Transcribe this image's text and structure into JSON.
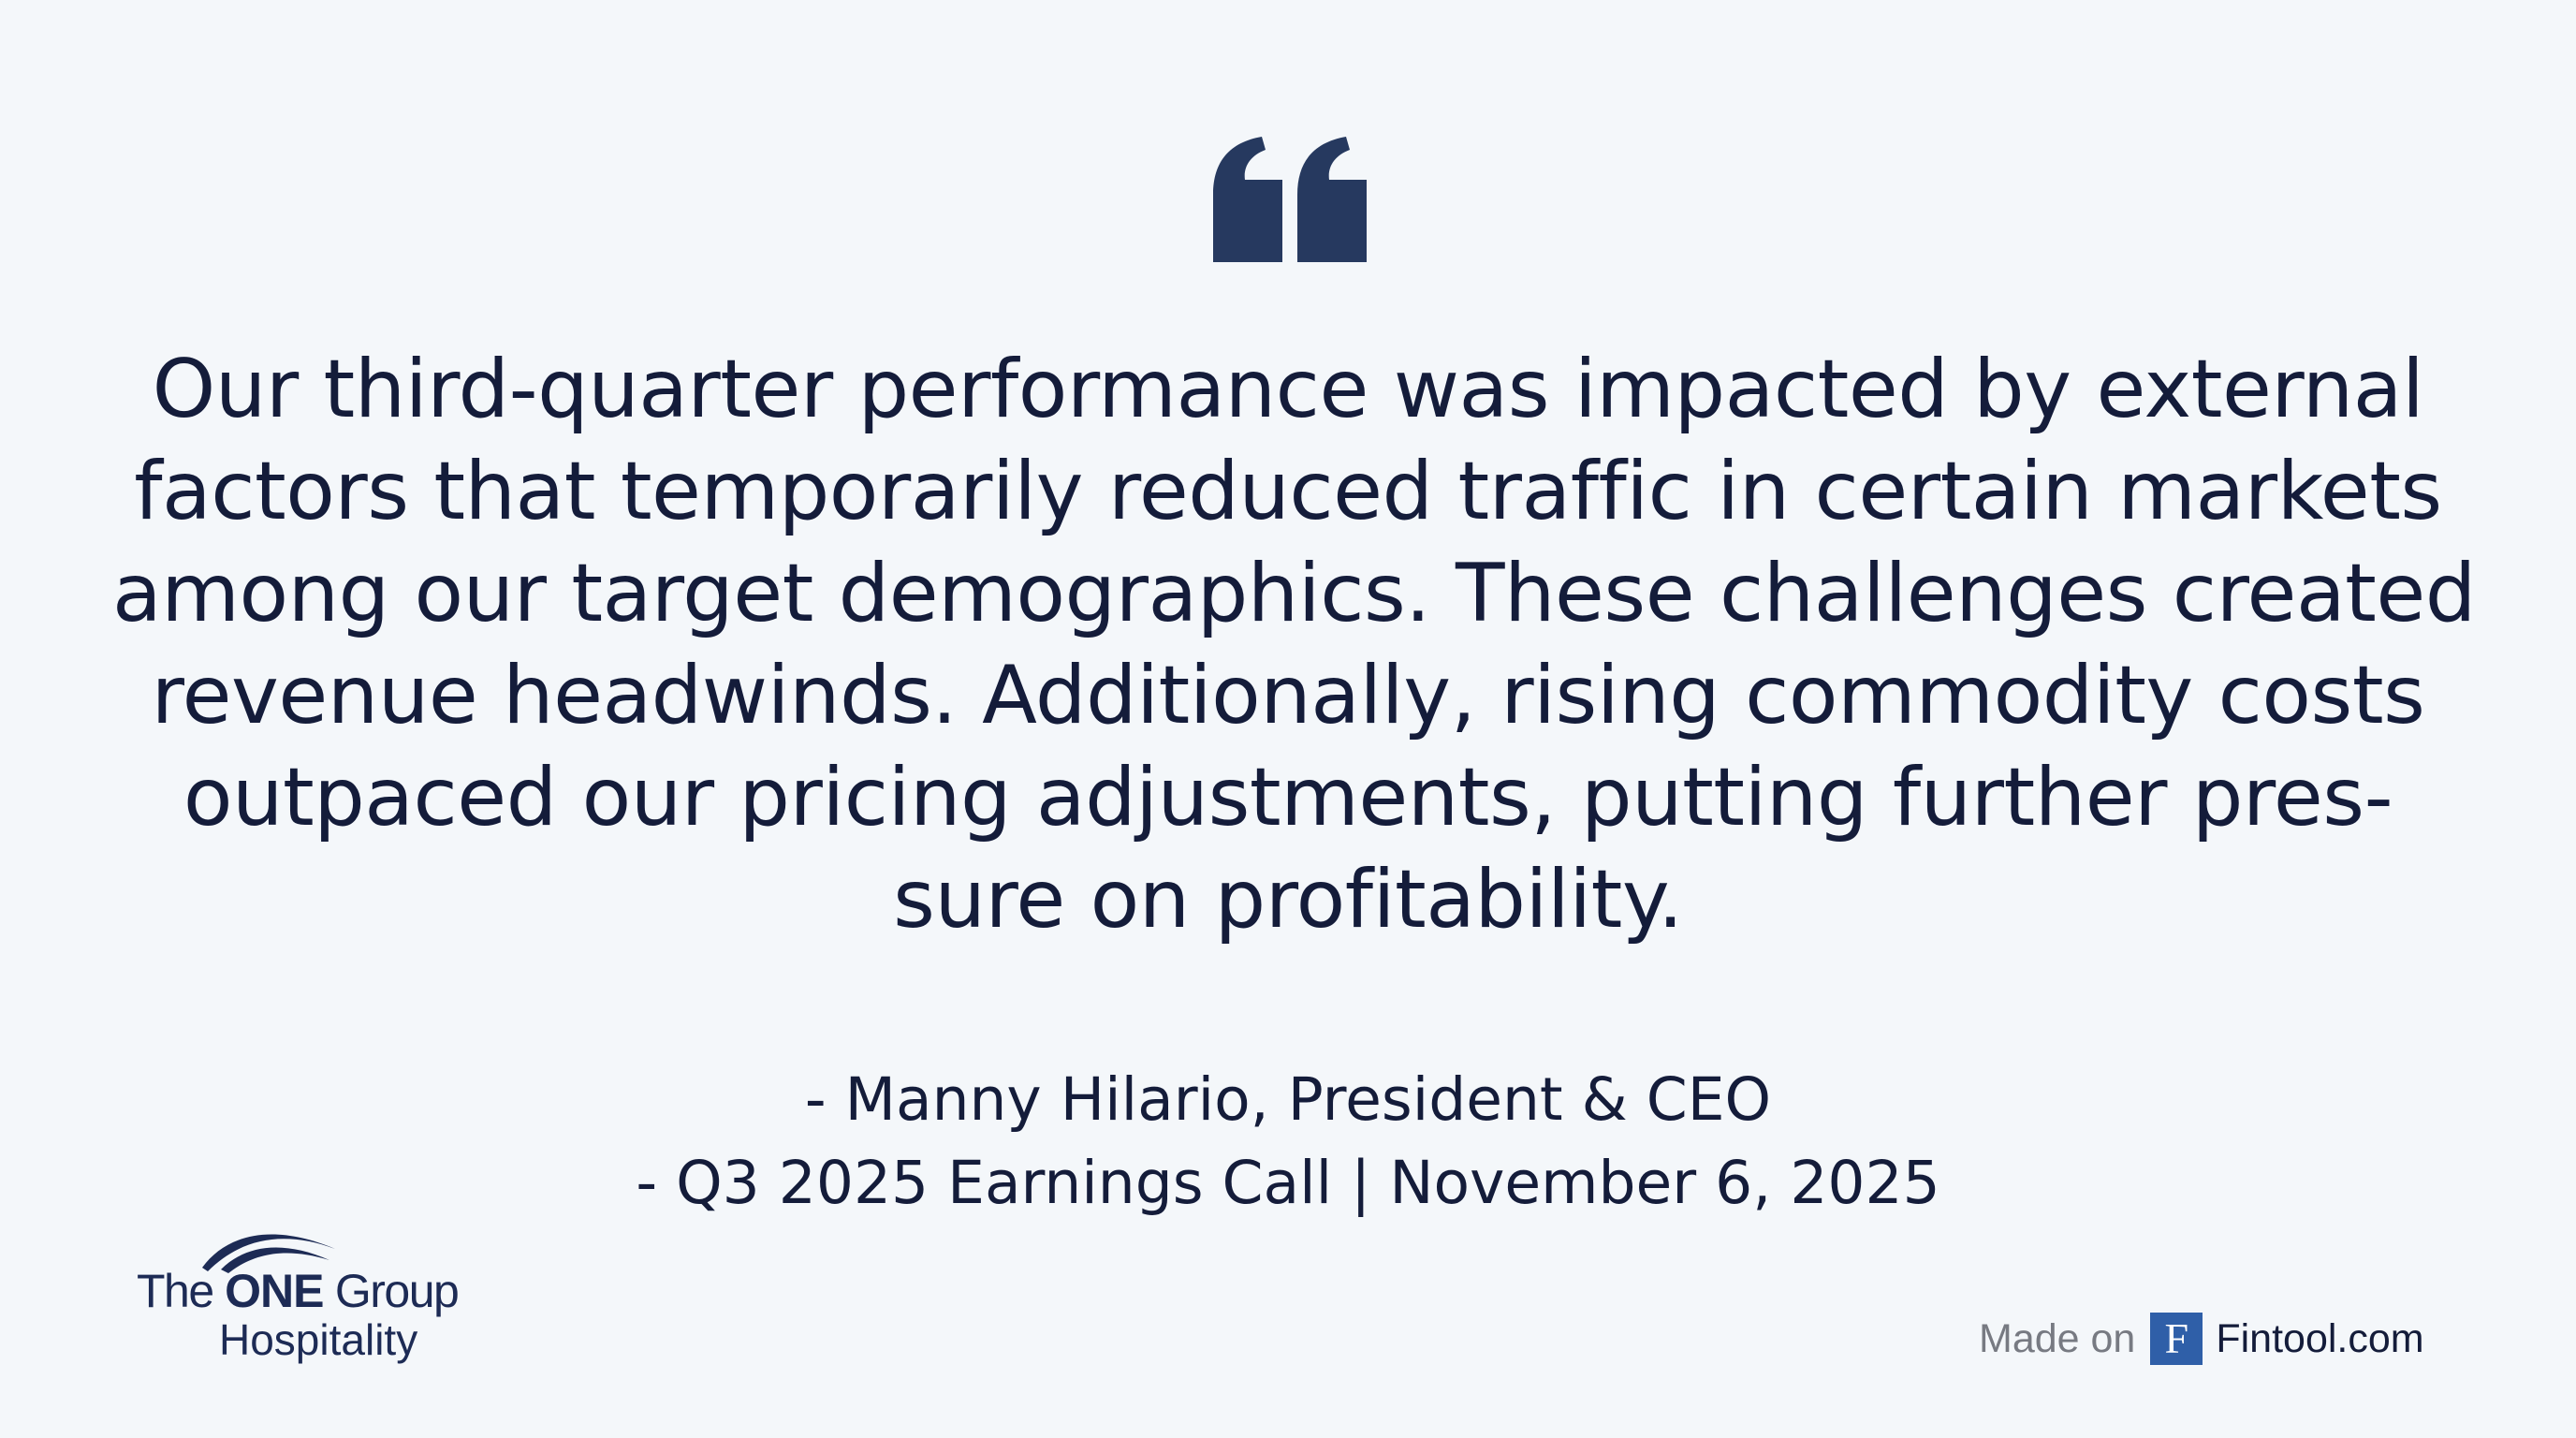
{
  "quote": {
    "lines": [
      "Our third-quarter performance was impacted by external",
      "factors that temporarily reduced traffic in certain markets",
      "among our target demographics. These challenges created",
      "revenue headwinds. Additionally, rising commodity costs",
      "outpaced our pricing adjustments, putting further pres-",
      "sure on profitability."
    ]
  },
  "attribution": {
    "speaker": "- Manny Hilario, President & CEO",
    "event": "- Q3 2025 Earnings Call | November 6, 2025"
  },
  "logo": {
    "line1_prefix": "The",
    "line1_bold": "ONE",
    "line1_suffix": "Group",
    "line2": "Hospitality"
  },
  "footer": {
    "made_on_label": "Made on",
    "badge_letter": "F",
    "brand": "Fintool.com"
  },
  "colors": {
    "background": "#f4f7fa",
    "text": "#141c3a",
    "quote_mark": "#26395f",
    "badge": "#2f5fa8",
    "muted": "#777a82"
  },
  "icons": {
    "quote_mark": "opening-double-quote-icon",
    "logo_mark": "swoosh-icon"
  }
}
